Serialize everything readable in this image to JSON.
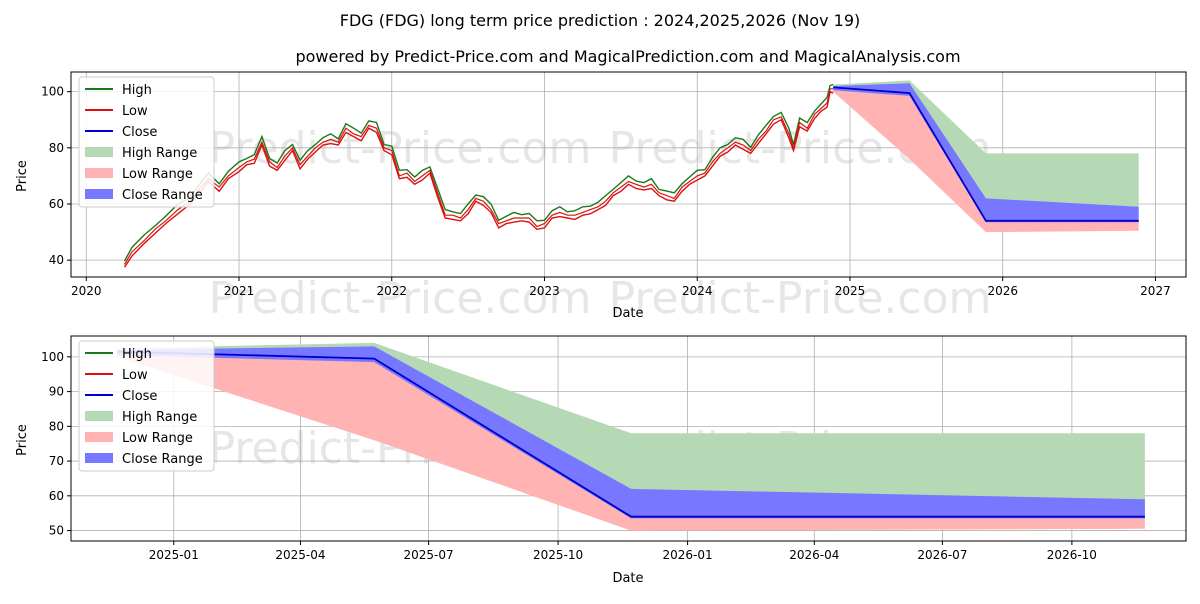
{
  "title": "FDG (FDG) long term price prediction : 2024,2025,2026 (Nov 19)",
  "subtitle": "powered by Predict-Price.com and MagicalPrediction.com and MagicalAnalysis.com",
  "watermark": "Predict-Price.com",
  "colors": {
    "high": "#1a7a1a",
    "low": "#dd1111",
    "close": "#0000cc",
    "high_range": "#b5d9b5",
    "low_range": "#ffb3b3",
    "close_range": "#7777ff",
    "grid": "#b0b0b0",
    "axis": "#000000"
  },
  "legend": [
    "High",
    "Low",
    "Close",
    "High Range",
    "Low Range",
    "Close Range"
  ],
  "chart_data": [
    {
      "type": "line",
      "name": "history-and-forecast",
      "title": "FDG (FDG) long term price prediction : 2024,2025,2026 (Nov 19)",
      "xlabel": "Date",
      "ylabel": "Price",
      "xlim": [
        2019.9,
        2027.2
      ],
      "ylim": [
        34,
        107
      ],
      "xticks": [
        2020,
        2021,
        2022,
        2023,
        2024,
        2025,
        2026,
        2027
      ],
      "xtick_labels": [
        "2020",
        "2021",
        "2022",
        "2023",
        "2024",
        "2025",
        "2026",
        "2027"
      ],
      "yticks": [
        40,
        60,
        80,
        100
      ],
      "ytick_labels": [
        "40",
        "60",
        "80",
        "100"
      ],
      "grid": true,
      "legend_position": "upper-left",
      "history_close": [
        [
          2020.25,
          38.5
        ],
        [
          2020.3,
          43
        ],
        [
          2020.38,
          47
        ],
        [
          2020.45,
          51
        ],
        [
          2020.52,
          54
        ],
        [
          2020.6,
          58
        ],
        [
          2020.68,
          61
        ],
        [
          2020.75,
          66
        ],
        [
          2020.8,
          69
        ],
        [
          2020.87,
          66
        ],
        [
          2020.93,
          70
        ],
        [
          2021.0,
          73
        ],
        [
          2021.05,
          75
        ],
        [
          2021.1,
          76
        ],
        [
          2021.15,
          82
        ],
        [
          2021.2,
          75
        ],
        [
          2021.25,
          73
        ],
        [
          2021.3,
          77
        ],
        [
          2021.35,
          80
        ],
        [
          2021.4,
          74
        ],
        [
          2021.45,
          77
        ],
        [
          2021.5,
          80
        ],
        [
          2021.55,
          82
        ],
        [
          2021.6,
          83
        ],
        [
          2021.65,
          82
        ],
        [
          2021.7,
          87
        ],
        [
          2021.75,
          85
        ],
        [
          2021.8,
          84
        ],
        [
          2021.85,
          88
        ],
        [
          2021.9,
          87
        ],
        [
          2021.95,
          80
        ],
        [
          2022.0,
          79
        ],
        [
          2022.05,
          70
        ],
        [
          2022.1,
          71
        ],
        [
          2022.15,
          68
        ],
        [
          2022.2,
          70
        ],
        [
          2022.25,
          72
        ],
        [
          2022.3,
          64
        ],
        [
          2022.35,
          56
        ],
        [
          2022.4,
          56
        ],
        [
          2022.45,
          55
        ],
        [
          2022.5,
          58
        ],
        [
          2022.55,
          62
        ],
        [
          2022.6,
          61
        ],
        [
          2022.65,
          58
        ],
        [
          2022.7,
          53
        ],
        [
          2022.75,
          54
        ],
        [
          2022.8,
          55
        ],
        [
          2022.85,
          55
        ],
        [
          2022.9,
          55
        ],
        [
          2022.95,
          52
        ],
        [
          2023.0,
          53
        ],
        [
          2023.05,
          56
        ],
        [
          2023.1,
          57
        ],
        [
          2023.15,
          56
        ],
        [
          2023.2,
          56
        ],
        [
          2023.25,
          57
        ],
        [
          2023.3,
          58
        ],
        [
          2023.35,
          59
        ],
        [
          2023.4,
          61
        ],
        [
          2023.45,
          64
        ],
        [
          2023.5,
          66
        ],
        [
          2023.55,
          68
        ],
        [
          2023.6,
          67
        ],
        [
          2023.65,
          66
        ],
        [
          2023.7,
          67
        ],
        [
          2023.75,
          64
        ],
        [
          2023.8,
          63
        ],
        [
          2023.85,
          62
        ],
        [
          2023.9,
          66
        ],
        [
          2023.95,
          68
        ],
        [
          2024.0,
          70
        ],
        [
          2024.05,
          71
        ],
        [
          2024.1,
          75
        ],
        [
          2024.15,
          78
        ],
        [
          2024.2,
          80
        ],
        [
          2024.25,
          82
        ],
        [
          2024.3,
          81
        ],
        [
          2024.35,
          79
        ],
        [
          2024.4,
          83
        ],
        [
          2024.45,
          86
        ],
        [
          2024.5,
          90
        ],
        [
          2024.55,
          91
        ],
        [
          2024.6,
          85
        ],
        [
          2024.63,
          80
        ],
        [
          2024.67,
          89
        ],
        [
          2024.72,
          87
        ],
        [
          2024.77,
          92
        ],
        [
          2024.81,
          94
        ],
        [
          2024.85,
          96
        ],
        [
          2024.87,
          101
        ],
        [
          2024.89,
          101
        ]
      ],
      "forecast_x": [
        2024.89,
        2025.39,
        2025.89,
        2026.89
      ],
      "forecast_close": [
        101.5,
        99.5,
        54,
        54
      ],
      "high_range_upper": [
        102.5,
        104,
        78,
        78
      ],
      "high_range_lower": [
        101.5,
        99.5,
        54,
        54
      ],
      "low_range_upper": [
        101,
        99,
        54,
        54
      ],
      "low_range_lower": [
        100,
        76,
        50,
        50.5
      ],
      "close_range_upper": [
        102,
        103,
        62,
        59
      ],
      "close_range_lower": [
        100.5,
        98.5,
        53.5,
        53.5
      ]
    },
    {
      "type": "line",
      "name": "forecast-zoom",
      "xlabel": "Date",
      "ylabel": "Price",
      "xlim": [
        2024.8,
        2026.97
      ],
      "ylim": [
        47,
        106
      ],
      "xticks": [
        2025.0,
        2025.2466,
        2025.4959,
        2025.7479,
        2026.0,
        2026.2466,
        2026.4959,
        2026.7479
      ],
      "xtick_labels": [
        "2025-01",
        "2025-04",
        "2025-07",
        "2025-10",
        "2026-01",
        "2026-04",
        "2026-07",
        "2026-10"
      ],
      "yticks": [
        50,
        60,
        70,
        80,
        90,
        100
      ],
      "ytick_labels": [
        "50",
        "60",
        "70",
        "80",
        "90",
        "100"
      ],
      "grid": true,
      "legend_position": "upper-left",
      "forecast_x": [
        2024.89,
        2025.39,
        2025.89,
        2026.89
      ],
      "forecast_close": [
        101.5,
        99.5,
        54,
        54
      ],
      "high_range_upper": [
        102.5,
        104,
        78,
        78
      ],
      "high_range_lower": [
        101.5,
        99.5,
        54,
        54
      ],
      "low_range_upper": [
        101,
        99,
        54,
        54
      ],
      "low_range_lower": [
        100,
        76,
        50,
        50.5
      ],
      "close_range_upper": [
        102,
        103,
        62,
        59
      ],
      "close_range_lower": [
        100.5,
        98.5,
        53.5,
        53.5
      ]
    }
  ]
}
